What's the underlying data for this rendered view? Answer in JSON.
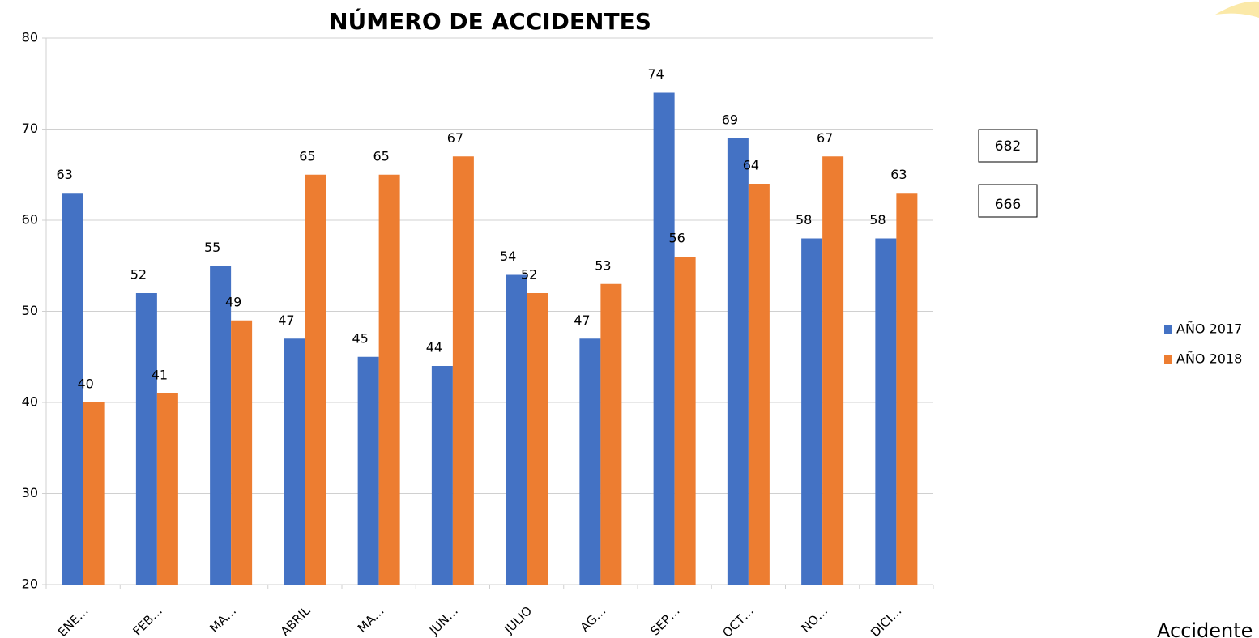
{
  "chart_data": {
    "type": "bar",
    "title": "NÚMERO DE ACCIDENTES",
    "categories": [
      "ENE…",
      "FEB…",
      "MA…",
      "ABRIL",
      "MA…",
      "JUN…",
      "JULIO",
      "AG…",
      "SEP…",
      "OCT…",
      "NO…",
      "DICI…"
    ],
    "series": [
      {
        "name": "AÑO 2017",
        "color": "#4472c4",
        "values": [
          63,
          52,
          55,
          47,
          45,
          44,
          54,
          47,
          74,
          69,
          58,
          58
        ]
      },
      {
        "name": "AÑO 2018",
        "color": "#ed7d31",
        "values": [
          40,
          41,
          49,
          65,
          65,
          67,
          52,
          53,
          56,
          64,
          67,
          63
        ]
      }
    ],
    "ylim": [
      20,
      80
    ],
    "yticks": [
      20,
      30,
      40,
      50,
      60,
      70,
      80
    ],
    "grid": true,
    "legend": "right",
    "annotations": [
      "682",
      "666",
      "Accidente"
    ]
  }
}
